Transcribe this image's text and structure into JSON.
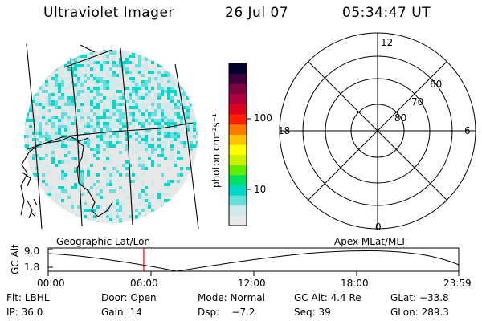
{
  "header": {
    "instrument": "Ultraviolet Imager",
    "date": "26 Jul 07",
    "time": "05:34:47 UT"
  },
  "colorbar": {
    "unit_label": "photon cm⁻²s⁻¹",
    "tick_labels": [
      "100",
      "10"
    ],
    "colors": [
      "#e8e8e8",
      "#cfe9ea",
      "#66dede",
      "#00d8c8",
      "#00e060",
      "#60ee00",
      "#cdf000",
      "#ffff00",
      "#ffc000",
      "#ff7800",
      "#ff2000",
      "#e00020",
      "#b00040",
      "#800040",
      "#3d003d",
      "#000030"
    ]
  },
  "polar_plot": {
    "mlt_labels": {
      "top": "12",
      "left": "18",
      "right": "6",
      "bottom": "0"
    },
    "lat_labels": [
      "60",
      "70",
      "80"
    ]
  },
  "altitude_plot": {
    "left_title": "Geographic Lat/Lon",
    "right_title": "Apex MLat/MLT",
    "axis_label": "GC Alt",
    "y_ticks": [
      "9.0",
      "1.8"
    ],
    "x_ticks": [
      "00:00",
      "06:00",
      "12:00",
      "18:00",
      "23:59"
    ],
    "current_time_hours": 5.58,
    "marker_color": "#ff0000"
  },
  "status": {
    "flt": "Flt: LBHL",
    "door": "Door: Open",
    "mode": "Mode: Normal",
    "gc_alt": "GC Alt: 4.4 Re",
    "glat": "GLat: −33.8",
    "ip": "IP: 36.0",
    "gain": "Gain: 14",
    "dsp": "Dsp:    −7.2",
    "seq": "Seq: 39",
    "glon": "GLon: 289.3"
  }
}
